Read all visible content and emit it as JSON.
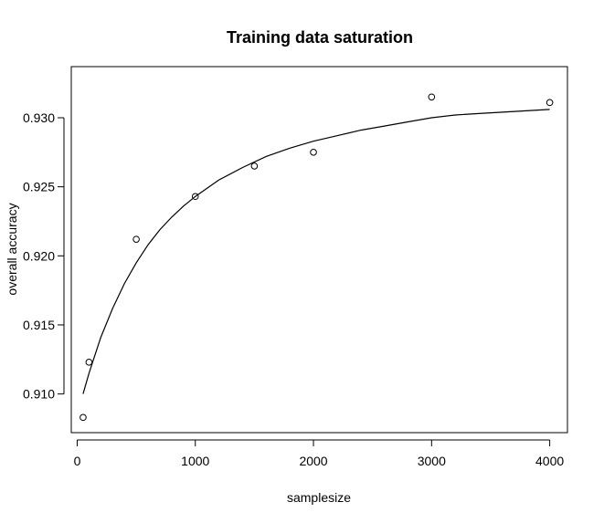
{
  "chart_data": {
    "type": "scatter",
    "title": "Training data saturation",
    "xlabel": "samplesize",
    "ylabel": "overall accuracy",
    "xlim": [
      -50,
      4150
    ],
    "ylim": [
      0.9072,
      0.9337
    ],
    "xticks": [
      0,
      1000,
      2000,
      3000,
      4000
    ],
    "xtick_labels": [
      "0",
      "1000",
      "2000",
      "3000",
      "4000"
    ],
    "yticks": [
      0.91,
      0.915,
      0.92,
      0.925,
      0.93
    ],
    "ytick_labels": [
      "0.910",
      "0.915",
      "0.920",
      "0.925",
      "0.930"
    ],
    "grid": false,
    "series": [
      {
        "type": "scatter",
        "marker": "open-circle",
        "x": [
          50,
          100,
          500,
          1000,
          1500,
          2000,
          3000,
          4000
        ],
        "y": [
          0.9083,
          0.9123,
          0.9212,
          0.9243,
          0.9265,
          0.9275,
          0.9315,
          0.9311
        ]
      },
      {
        "type": "line",
        "x": [
          50,
          100,
          200,
          300,
          400,
          500,
          600,
          700,
          800,
          900,
          1000,
          1200,
          1400,
          1600,
          1800,
          2000,
          2200,
          2400,
          2600,
          2800,
          3000,
          3200,
          3400,
          3600,
          3800,
          4000
        ],
        "y": [
          0.91,
          0.9115,
          0.9141,
          0.9162,
          0.918,
          0.9195,
          0.9208,
          0.9219,
          0.9228,
          0.9236,
          0.9243,
          0.9255,
          0.9264,
          0.9272,
          0.9278,
          0.9283,
          0.9287,
          0.9291,
          0.9294,
          0.9297,
          0.93,
          0.9302,
          0.9303,
          0.9304,
          0.9305,
          0.9306
        ]
      }
    ]
  }
}
